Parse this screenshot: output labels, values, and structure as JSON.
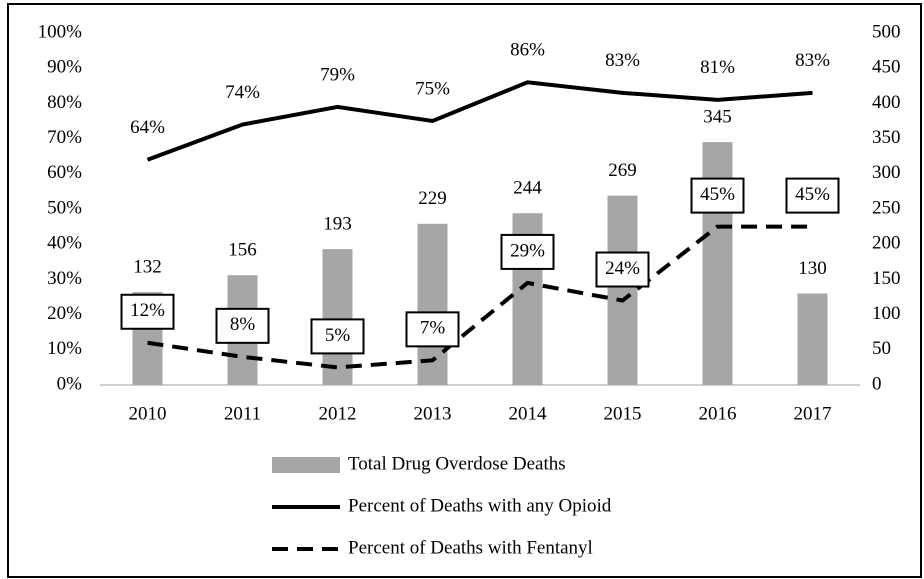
{
  "chart_data": {
    "type": "bar",
    "categories": [
      "2010",
      "2011",
      "2012",
      "2013",
      "2014",
      "2015",
      "2016",
      "2017"
    ],
    "series": [
      {
        "name": "Total Drug Overdose Deaths",
        "type": "bar",
        "axis": "y2",
        "color": "#a6a6a6",
        "values": [
          132,
          156,
          193,
          229,
          244,
          269,
          345,
          130
        ]
      },
      {
        "name": "Percent of Deaths with any Opioid",
        "type": "line",
        "color": "#000000",
        "line_style": "solid",
        "values": [
          64,
          74,
          79,
          75,
          86,
          83,
          81,
          83
        ],
        "value_labels": [
          "64%",
          "74%",
          "79%",
          "75%",
          "86%",
          "83%",
          "81%",
          "83%"
        ]
      },
      {
        "name": "Percent of Deaths with Fentanyl",
        "type": "line",
        "color": "#000000",
        "line_style": "dashed",
        "label_box": true,
        "values": [
          12,
          8,
          5,
          7,
          29,
          24,
          45,
          45
        ],
        "value_labels": [
          "12%",
          "8%",
          "5%",
          "7%",
          "29%",
          "24%",
          "45%",
          "45%"
        ]
      }
    ],
    "ylim": [
      0,
      100
    ],
    "yticks": [
      {
        "value": 0,
        "label": "0%"
      },
      {
        "value": 10,
        "label": "10%"
      },
      {
        "value": 20,
        "label": "20%"
      },
      {
        "value": 30,
        "label": "30%"
      },
      {
        "value": 40,
        "label": "40%"
      },
      {
        "value": 50,
        "label": "50%"
      },
      {
        "value": 60,
        "label": "60%"
      },
      {
        "value": 70,
        "label": "70%"
      },
      {
        "value": 80,
        "label": "80%"
      },
      {
        "value": 90,
        "label": "90%"
      },
      {
        "value": 100,
        "label": "100%"
      }
    ],
    "y2lim": [
      0,
      500
    ],
    "y2ticks": [
      0,
      50,
      100,
      150,
      200,
      250,
      300,
      350,
      400,
      450,
      500
    ],
    "grid": false,
    "legend": "bottom"
  }
}
